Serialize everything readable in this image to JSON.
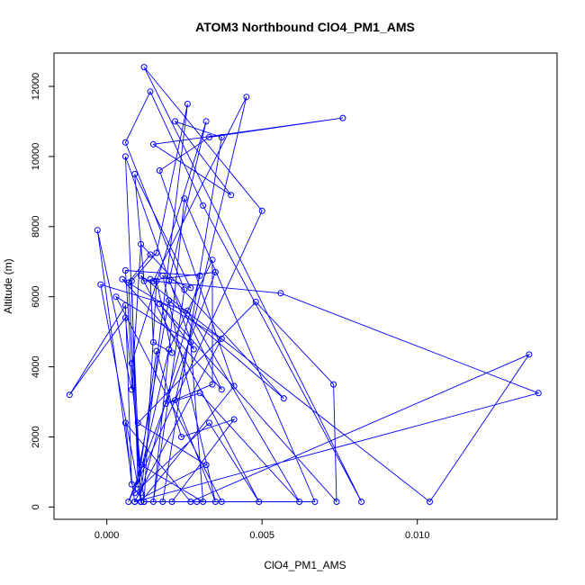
{
  "chart_data": {
    "type": "line",
    "title": "ATOM3 Northbound ClO4_PM1_AMS",
    "xlabel": "ClO4_PM1_AMS",
    "ylabel": "Altitude (m)",
    "xlim": [
      -0.0017,
      0.0145
    ],
    "ylim": [
      -350,
      12950
    ],
    "x_ticks": [
      0.0,
      0.005,
      0.01
    ],
    "x_tick_labels": [
      "0.000",
      "0.005",
      "0.010"
    ],
    "y_ticks": [
      0,
      2000,
      4000,
      6000,
      8000,
      10000,
      12000
    ],
    "y_tick_labels": [
      "0",
      "2000",
      "4000",
      "6000",
      "8000",
      "10000",
      "12000"
    ],
    "grid": false,
    "series": [
      {
        "color": "#0000ff",
        "marker": "open-circle",
        "x": [
          0.0014,
          0.0007,
          0.0011,
          0.0006,
          0.003,
          0.0011,
          0.0026,
          0.0016,
          0.0008,
          0.001,
          0.002,
          0.0034,
          0.0034,
          0.0019,
          0.003,
          0.0062,
          0.0026,
          -0.0002,
          0.0011,
          0.0008,
          0.0032,
          0.002,
          0.0037,
          0.0005,
          0.0037,
          0.0009,
          0.0032,
          0.001,
          0.0048,
          0.0073,
          0.0074,
          0.0017,
          0.0028,
          0.0006,
          0.0011,
          0.0041,
          0.0017,
          0.0033,
          0.0076,
          0.0015,
          0.004,
          0.0022,
          0.0037,
          0.0018,
          0.0067,
          0.0025,
          0.0015,
          0.0025,
          0.0006,
          0.0014,
          0.0031,
          0.0082,
          0.0012,
          0.005,
          0.0007,
          0.0035,
          0.0012,
          0.0009,
          0.0027,
          0.0018,
          0.0035,
          0.0022,
          0.0045,
          0.0015,
          0.0056,
          0.0139,
          0.0009,
          -0.0003,
          0.0008,
          0.0011,
          0.0057,
          0.002,
          0.0009,
          0.0033,
          0.0049,
          0.0011,
          0.0104,
          0.0136,
          0.0027,
          0.0006,
          0.0008,
          0.0006,
          -0.0012,
          0.0006,
          0.0012,
          0.0029,
          0.0021,
          0.0041,
          0.0024,
          0.0016,
          0.0011,
          0.0031,
          0.0027,
          0.0003,
          0.0037,
          0.0012,
          0.0016,
          0.0021,
          0.0015,
          0.0014
        ],
        "y": [
          7200,
          6400,
          150,
          6750,
          6600,
          400,
          11500,
          7250,
          6450,
          650,
          4500,
          7050,
          3500,
          2950,
          3250,
          150,
          5600,
          6350,
          150,
          4100,
          11000,
          6450,
          3350,
          6500,
          4800,
          150,
          1200,
          2400,
          5850,
          3500,
          150,
          5800,
          4500,
          10000,
          150,
          3450,
          9600,
          10550,
          11100,
          10350,
          8900,
          11000,
          10550,
          150,
          150,
          8800,
          150,
          6200,
          10400,
          11850,
          8600,
          150,
          12550,
          8450,
          150,
          6700,
          6450,
          9500,
          6250,
          6600,
          150,
          3050,
          11700,
          6450,
          6100,
          3250,
          150,
          7900,
          3350,
          7500,
          3100,
          5900,
          400,
          2400,
          150,
          6600,
          150,
          4350,
          150,
          2400,
          650,
          5750,
          3200,
          5400,
          150,
          150,
          150,
          2500,
          2000,
          4450,
          1200,
          150,
          4700,
          6000,
          150,
          150,
          6450,
          4400,
          4700,
          6500
        ]
      }
    ]
  }
}
